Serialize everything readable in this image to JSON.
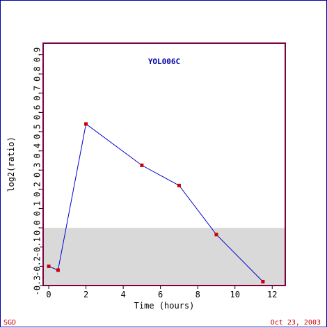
{
  "chart_data": {
    "type": "line",
    "title": "YOL006C",
    "xlabel": "Time (hours)",
    "ylabel": "log2(ratio)",
    "x": [
      0,
      0.5,
      2,
      5,
      7,
      9,
      11.5
    ],
    "y": [
      -0.2,
      -0.22,
      0.54,
      0.325,
      0.22,
      -0.035,
      -0.28
    ],
    "xlim": [
      -0.3,
      12.7
    ],
    "ylim": [
      -0.3,
      0.96
    ],
    "xticks": [
      0,
      2,
      4,
      6,
      8,
      10,
      12
    ],
    "xtick_labels": [
      "0",
      "2",
      "4",
      "6",
      "8",
      "10",
      "12"
    ],
    "yticks": [
      -0.3,
      -0.2,
      -0.1,
      0.0,
      0.1,
      0.2,
      0.3,
      0.4,
      0.5,
      0.6,
      0.7,
      0.8,
      0.9
    ],
    "ytick_labels": [
      "-0.3",
      "-0.2",
      "-0.1",
      "0.0",
      "0.1",
      "0.2",
      "0.3",
      "0.4",
      "0.5",
      "0.6",
      "0.7",
      "0.8",
      "0.9"
    ],
    "shaded_region": {
      "y_from": -0.3,
      "y_to": 0.0
    },
    "grid": false,
    "line_color": "#0000cc",
    "marker_color": "#cc0000",
    "shade_color": "#d9d9d9",
    "frame_color": "#800040"
  },
  "footer": {
    "left": "SGD",
    "right": "Oct 23, 2003"
  }
}
